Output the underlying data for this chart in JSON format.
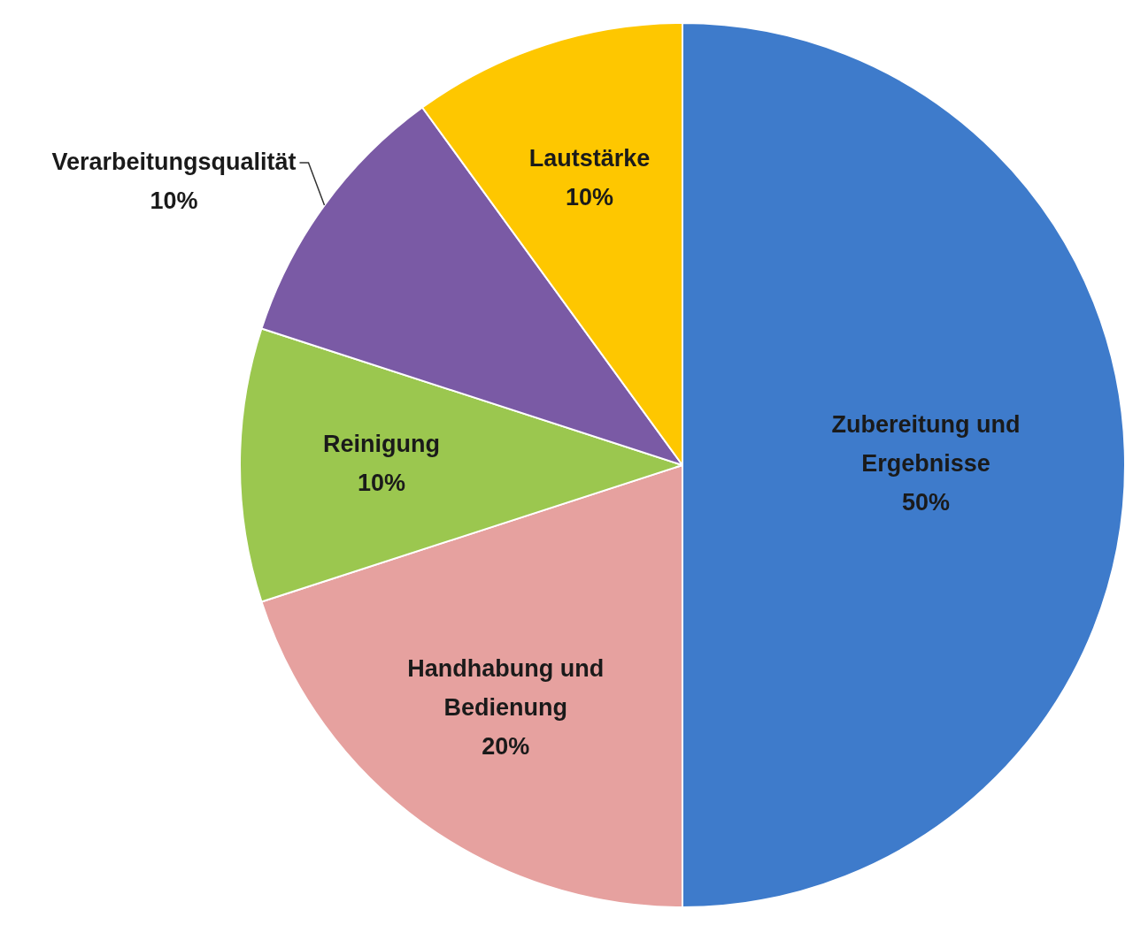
{
  "chart_data": {
    "type": "pie",
    "categories": [
      "Zubereitung und Ergebnisse",
      "Handhabung und Bedienung",
      "Reinigung",
      "Verarbeitungsqualität",
      "Lautstärke"
    ],
    "values": [
      50,
      20,
      10,
      10,
      10
    ],
    "colors": [
      "#3e7bcb",
      "#e6a19f",
      "#9bc74f",
      "#7a5aa5",
      "#fec700"
    ],
    "value_labels": [
      "50%",
      "20%",
      "10%",
      "10%",
      "10%"
    ],
    "legend": false
  }
}
